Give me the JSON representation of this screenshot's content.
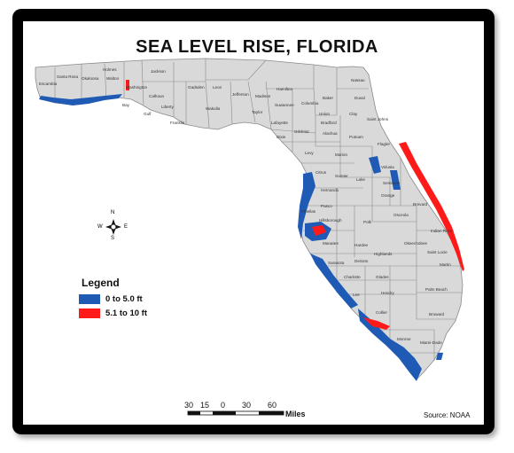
{
  "title": "SEA LEVEL RISE, FLORIDA",
  "legend": {
    "title": "Legend",
    "items": [
      {
        "label": "0 to 5.0 ft",
        "color": "#1f5bb5"
      },
      {
        "label": "5.1 to 10 ft",
        "color": "#ff1a1a"
      }
    ]
  },
  "scale_bar": {
    "ticks": [
      "30",
      "15",
      "0",
      "30",
      "60"
    ],
    "unit": "Miles"
  },
  "source": "Source: NOAA",
  "north_arrow": {
    "n": "N",
    "e": "E",
    "s": "S",
    "w": "W"
  },
  "colors": {
    "land": "#d9d9d9",
    "county_border": "#8a8a8a",
    "zone_low": "#1f5bb5",
    "zone_high": "#ff1a1a",
    "frame": "#000000"
  },
  "counties": [
    "Escambia",
    "Santa Rosa",
    "Okaloosa",
    "Walton",
    "Holmes",
    "Washington",
    "Jackson",
    "Bay",
    "Calhoun",
    "Gadsden",
    "Liberty",
    "Leon",
    "Jefferson",
    "Madison",
    "Hamilton",
    "Wakulla",
    "Taylor",
    "Gulf",
    "Franklin",
    "Suwannee",
    "Columbia",
    "Baker",
    "Nassau",
    "Duval",
    "Union",
    "Bradford",
    "Clay",
    "Saint Johns",
    "Lafayette",
    "Dixie",
    "Gilchrist",
    "Alachua",
    "Putnam",
    "Flagler",
    "Levy",
    "Marion",
    "Volusia",
    "Citrus",
    "Sumter",
    "Lake",
    "Seminole",
    "Hernando",
    "Pasco",
    "Orange",
    "Brevard",
    "Osceola",
    "Hillsborough",
    "Polk",
    "Pinellas",
    "Manatee",
    "Hardee",
    "Indian River",
    "Okeechobee",
    "Highlands",
    "DeSoto",
    "Sarasota",
    "Saint Lucie",
    "Martin",
    "Charlotte",
    "Glades",
    "Lee",
    "Hendry",
    "Palm Beach",
    "Collier",
    "Broward",
    "Miami-Dade",
    "Monroe"
  ]
}
